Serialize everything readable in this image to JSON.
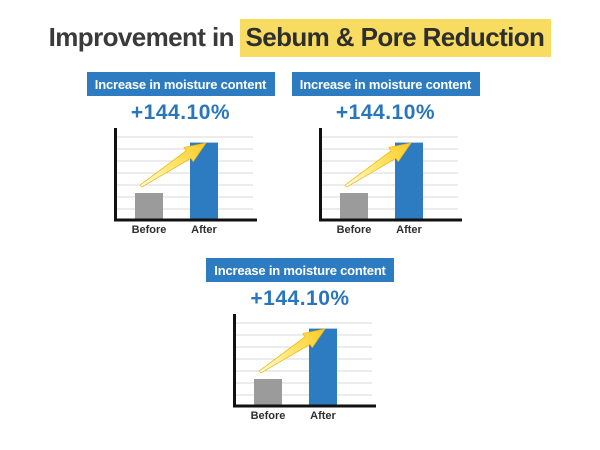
{
  "title": {
    "prefix": "Improvement in ",
    "highlight": "Sebum & Pore Reduction"
  },
  "panels": [
    {
      "header": "Increase in moisture content",
      "value": "+144.10%"
    },
    {
      "header": "Increase in moisture content",
      "value": "+144.10%"
    },
    {
      "header": "Increase in moisture content",
      "value": "+144.10%"
    }
  ],
  "chart_data": [
    {
      "type": "bar",
      "title": "Increase in moisture content",
      "categories": [
        "Before",
        "After"
      ],
      "values": [
        30,
        86
      ],
      "ylim": [
        0,
        100
      ],
      "y_axis_tick_labels": "none (schematic relative heights)",
      "annotation": "+144.10%",
      "legend": "none",
      "grid": "horizontal light-gray lines",
      "bar_colors": [
        "#9b9b9b",
        "#2d7cc1"
      ],
      "decoration": "yellow growth arrow from Before toward top of After bar"
    },
    {
      "type": "bar",
      "title": "Increase in moisture content",
      "categories": [
        "Before",
        "After"
      ],
      "values": [
        30,
        86
      ],
      "ylim": [
        0,
        100
      ],
      "y_axis_tick_labels": "none (schematic relative heights)",
      "annotation": "+144.10%",
      "legend": "none",
      "grid": "horizontal light-gray lines",
      "bar_colors": [
        "#9b9b9b",
        "#2d7cc1"
      ],
      "decoration": "yellow growth arrow from Before toward top of After bar"
    },
    {
      "type": "bar",
      "title": "Increase in moisture content",
      "categories": [
        "Before",
        "After"
      ],
      "values": [
        30,
        86
      ],
      "ylim": [
        0,
        100
      ],
      "y_axis_tick_labels": "none (schematic relative heights)",
      "annotation": "+144.10%",
      "legend": "none",
      "grid": "horizontal light-gray lines",
      "bar_colors": [
        "#9b9b9b",
        "#2d7cc1"
      ],
      "decoration": "yellow growth arrow from Before toward top of After bar"
    }
  ],
  "colors": {
    "header_blue": "#2d7cc1",
    "value_blue": "#2a76bd",
    "bar_gray": "#9b9b9b",
    "bar_blue": "#2d7cc1",
    "highlight_yellow": "#f8dc61",
    "arrow_gold": "#fdc926",
    "gridline_gray": "#d9d9d9",
    "axis_black": "#111111",
    "background": "#ffffff"
  }
}
